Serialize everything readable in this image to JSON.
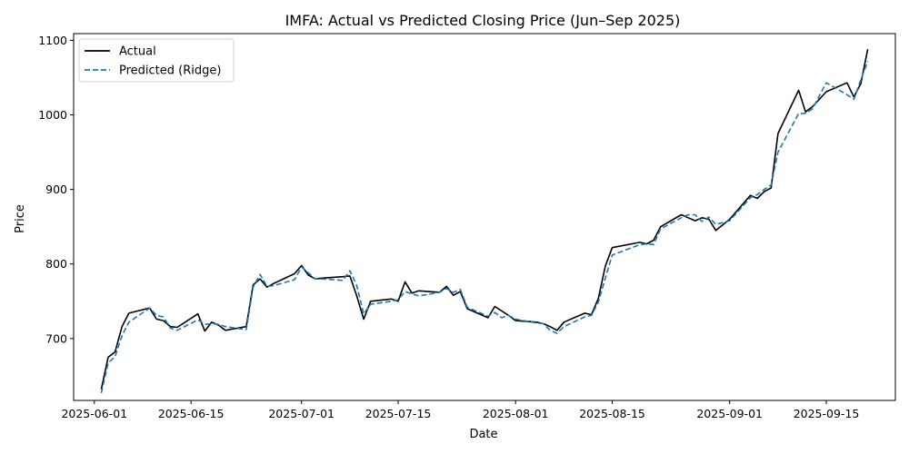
{
  "chart_data": {
    "type": "line",
    "title": "IMFA: Actual vs Predicted Closing Price (Jun–Sep 2025)",
    "xlabel": "Date",
    "ylabel": "Price",
    "x_ticks": [
      "2025-06-01",
      "2025-06-15",
      "2025-07-01",
      "2025-07-15",
      "2025-08-01",
      "2025-08-15",
      "2025-09-01",
      "2025-09-15"
    ],
    "y_ticks": [
      700,
      800,
      900,
      1000,
      1100
    ],
    "xlim": [
      "2025-05-29",
      "2025-09-25"
    ],
    "ylim": [
      617,
      1109
    ],
    "grid": false,
    "legend_position": "top-left",
    "colors": {
      "actual": "#000000",
      "predicted": "#1f77b4"
    },
    "series": [
      {
        "name": "Actual",
        "style": "solid",
        "points": [
          [
            "2025-06-02",
            632
          ],
          [
            "2025-06-03",
            675
          ],
          [
            "2025-06-04",
            682
          ],
          [
            "2025-06-05",
            716
          ],
          [
            "2025-06-06",
            734
          ],
          [
            "2025-06-09",
            741
          ],
          [
            "2025-06-10",
            726
          ],
          [
            "2025-06-11",
            724
          ],
          [
            "2025-06-12",
            716
          ],
          [
            "2025-06-13",
            715
          ],
          [
            "2025-06-16",
            733
          ],
          [
            "2025-06-17",
            710
          ],
          [
            "2025-06-18",
            722
          ],
          [
            "2025-06-19",
            718
          ],
          [
            "2025-06-20",
            711
          ],
          [
            "2025-06-23",
            716
          ],
          [
            "2025-06-24",
            772
          ],
          [
            "2025-06-25",
            780
          ],
          [
            "2025-06-26",
            769
          ],
          [
            "2025-06-27",
            774
          ],
          [
            "2025-06-30",
            787
          ],
          [
            "2025-07-01",
            798
          ],
          [
            "2025-07-02",
            785
          ],
          [
            "2025-07-03",
            780
          ],
          [
            "2025-07-04",
            781
          ],
          [
            "2025-07-07",
            783
          ],
          [
            "2025-07-08",
            784
          ],
          [
            "2025-07-09",
            757
          ],
          [
            "2025-07-10",
            726
          ],
          [
            "2025-07-11",
            750
          ],
          [
            "2025-07-14",
            753
          ],
          [
            "2025-07-15",
            750
          ],
          [
            "2025-07-16",
            776
          ],
          [
            "2025-07-17",
            761
          ],
          [
            "2025-07-18",
            764
          ],
          [
            "2025-07-21",
            762
          ],
          [
            "2025-07-22",
            770
          ],
          [
            "2025-07-23",
            758
          ],
          [
            "2025-07-24",
            763
          ],
          [
            "2025-07-25",
            740
          ],
          [
            "2025-07-28",
            728
          ],
          [
            "2025-07-29",
            743
          ],
          [
            "2025-07-30",
            737
          ],
          [
            "2025-07-31",
            731
          ],
          [
            "2025-08-01",
            724
          ],
          [
            "2025-08-04",
            722
          ],
          [
            "2025-08-05",
            720
          ],
          [
            "2025-08-06",
            716
          ],
          [
            "2025-08-07",
            711
          ],
          [
            "2025-08-08",
            722
          ],
          [
            "2025-08-11",
            734
          ],
          [
            "2025-08-12",
            732
          ],
          [
            "2025-08-13",
            754
          ],
          [
            "2025-08-14",
            797
          ],
          [
            "2025-08-15",
            822
          ],
          [
            "2025-08-19",
            829
          ],
          [
            "2025-08-20",
            827
          ],
          [
            "2025-08-21",
            832
          ],
          [
            "2025-08-22",
            850
          ],
          [
            "2025-08-25",
            866
          ],
          [
            "2025-08-26",
            862
          ],
          [
            "2025-08-27",
            858
          ],
          [
            "2025-08-28",
            862
          ],
          [
            "2025-08-29",
            860
          ],
          [
            "2025-08-30",
            845
          ],
          [
            "2025-09-01",
            860
          ],
          [
            "2025-09-04",
            892
          ],
          [
            "2025-09-05",
            888
          ],
          [
            "2025-09-06",
            897
          ],
          [
            "2025-09-07",
            902
          ],
          [
            "2025-09-08",
            975
          ],
          [
            "2025-09-11",
            1033
          ],
          [
            "2025-09-12",
            1004
          ],
          [
            "2025-09-13",
            1011
          ],
          [
            "2025-09-15",
            1031
          ],
          [
            "2025-09-18",
            1043
          ],
          [
            "2025-09-19",
            1024
          ],
          [
            "2025-09-20",
            1042
          ],
          [
            "2025-09-21",
            1088
          ]
        ]
      },
      {
        "name": "Predicted (Ridge)",
        "style": "dashed",
        "points": [
          [
            "2025-06-02",
            627
          ],
          [
            "2025-06-03",
            667
          ],
          [
            "2025-06-04",
            676
          ],
          [
            "2025-06-05",
            704
          ],
          [
            "2025-06-06",
            722
          ],
          [
            "2025-06-09",
            741
          ],
          [
            "2025-06-10",
            731
          ],
          [
            "2025-06-11",
            729
          ],
          [
            "2025-06-12",
            714
          ],
          [
            "2025-06-13",
            711
          ],
          [
            "2025-06-16",
            725
          ],
          [
            "2025-06-17",
            719
          ],
          [
            "2025-06-18",
            720
          ],
          [
            "2025-06-19",
            719
          ],
          [
            "2025-06-20",
            716
          ],
          [
            "2025-06-23",
            712
          ],
          [
            "2025-06-24",
            769
          ],
          [
            "2025-06-25",
            786
          ],
          [
            "2025-06-26",
            770
          ],
          [
            "2025-06-27",
            771
          ],
          [
            "2025-06-30",
            779
          ],
          [
            "2025-07-01",
            796
          ],
          [
            "2025-07-02",
            788
          ],
          [
            "2025-07-03",
            780
          ],
          [
            "2025-07-04",
            780
          ],
          [
            "2025-07-07",
            778
          ],
          [
            "2025-07-08",
            791
          ],
          [
            "2025-07-09",
            771
          ],
          [
            "2025-07-10",
            733
          ],
          [
            "2025-07-11",
            746
          ],
          [
            "2025-07-14",
            750
          ],
          [
            "2025-07-15",
            752
          ],
          [
            "2025-07-16",
            763
          ],
          [
            "2025-07-17",
            760
          ],
          [
            "2025-07-18",
            757
          ],
          [
            "2025-07-21",
            762
          ],
          [
            "2025-07-22",
            767
          ],
          [
            "2025-07-23",
            762
          ],
          [
            "2025-07-24",
            766
          ],
          [
            "2025-07-25",
            742
          ],
          [
            "2025-07-28",
            730
          ],
          [
            "2025-07-29",
            735
          ],
          [
            "2025-07-30",
            728
          ],
          [
            "2025-07-31",
            731
          ],
          [
            "2025-08-01",
            726
          ],
          [
            "2025-08-04",
            721
          ],
          [
            "2025-08-05",
            720
          ],
          [
            "2025-08-06",
            711
          ],
          [
            "2025-08-07",
            707
          ],
          [
            "2025-08-08",
            716
          ],
          [
            "2025-08-11",
            729
          ],
          [
            "2025-08-12",
            731
          ],
          [
            "2025-08-13",
            749
          ],
          [
            "2025-08-14",
            781
          ],
          [
            "2025-08-15",
            812
          ],
          [
            "2025-08-19",
            826
          ],
          [
            "2025-08-20",
            827
          ],
          [
            "2025-08-21",
            826
          ],
          [
            "2025-08-22",
            847
          ],
          [
            "2025-08-25",
            862
          ],
          [
            "2025-08-26",
            866
          ],
          [
            "2025-08-27",
            866
          ],
          [
            "2025-08-28",
            857
          ],
          [
            "2025-08-29",
            863
          ],
          [
            "2025-08-30",
            853
          ],
          [
            "2025-09-01",
            858
          ],
          [
            "2025-09-04",
            889
          ],
          [
            "2025-09-05",
            893
          ],
          [
            "2025-09-06",
            900
          ],
          [
            "2025-09-07",
            906
          ],
          [
            "2025-09-08",
            950
          ],
          [
            "2025-09-11",
            1002
          ],
          [
            "2025-09-12",
            1002
          ],
          [
            "2025-09-13",
            1008
          ],
          [
            "2025-09-15",
            1043
          ],
          [
            "2025-09-18",
            1027
          ],
          [
            "2025-09-19",
            1021
          ],
          [
            "2025-09-20",
            1047
          ],
          [
            "2025-09-21",
            1072
          ]
        ]
      }
    ]
  }
}
